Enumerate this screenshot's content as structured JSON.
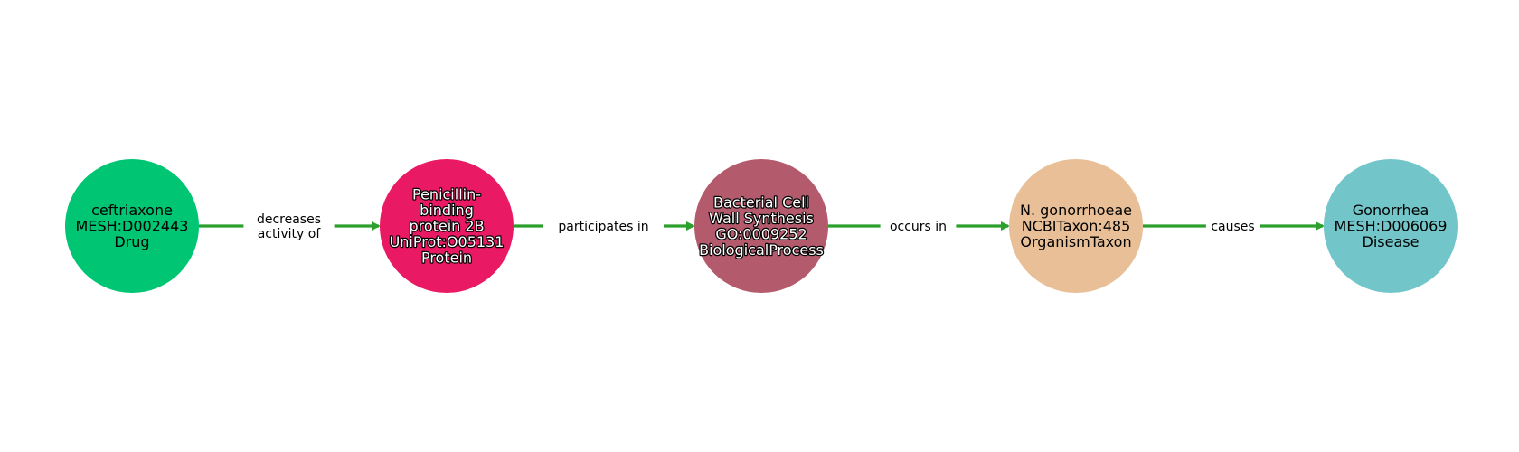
{
  "colors": {
    "edge": "#2ca02c",
    "background": "#ffffff"
  },
  "nodes": [
    {
      "id": "ceftriaxone",
      "lines": [
        "ceftriaxone",
        "MESH:D002443",
        "Drug"
      ],
      "fill": "#00c572",
      "text_color": "#000000",
      "outlined_text": false
    },
    {
      "id": "pbp2b",
      "lines": [
        "Penicillin-",
        "binding",
        "protein 2B",
        "UniProt:O05131",
        "Protein"
      ],
      "fill": "#e91a63",
      "text_color": "#ffffff",
      "outlined_text": true
    },
    {
      "id": "cell-wall",
      "lines": [
        "Bacterial Cell",
        "Wall Synthesis",
        "GO:0009252",
        "BiologicalProcess"
      ],
      "fill": "#b45a6d",
      "text_color": "#ffffff",
      "outlined_text": true
    },
    {
      "id": "gonorrhoeae",
      "lines": [
        "N. gonorrhoeae",
        "NCBITaxon:485",
        "OrganismTaxon"
      ],
      "fill": "#e8bf96",
      "text_color": "#000000",
      "outlined_text": false
    },
    {
      "id": "gonorrhea",
      "lines": [
        "Gonorrhea",
        "MESH:D006069",
        "Disease"
      ],
      "fill": "#72c6c9",
      "text_color": "#000000",
      "outlined_text": false
    }
  ],
  "edges": [
    {
      "from": 0,
      "to": 1,
      "label_lines": [
        "decreases",
        "activity of"
      ]
    },
    {
      "from": 1,
      "to": 2,
      "label_lines": [
        "participates in"
      ]
    },
    {
      "from": 2,
      "to": 3,
      "label_lines": [
        "occurs in"
      ]
    },
    {
      "from": 3,
      "to": 4,
      "label_lines": [
        "causes"
      ]
    }
  ]
}
